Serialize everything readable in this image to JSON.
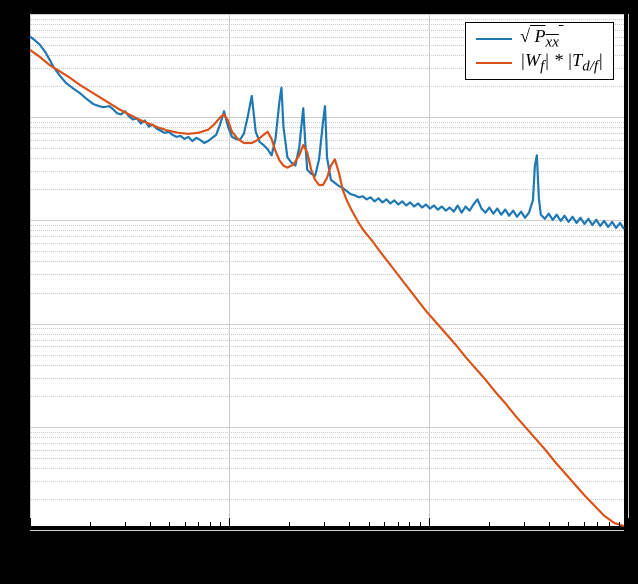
{
  "chart": {
    "type": "line",
    "background_color": "#000000",
    "plot_background": "#ffffff",
    "plot_border_color": "#000000",
    "plot_border_width": 2,
    "grid_color": "#cccccc",
    "xscale": "log",
    "yscale": "log",
    "xlim_decades": [
      0,
      3
    ],
    "ylim_decades": [
      0,
      5
    ],
    "x_minor_ticks_per_decade": [
      2,
      3,
      4,
      5,
      6,
      7,
      8,
      9
    ],
    "legend": {
      "position": "top-right",
      "border_color": "#000000",
      "background": "#ffffff",
      "items": [
        {
          "label_html": "&radic;<span style=\"text-decoration:overline\">&nbsp;P<sub>xx</sub>&nbsp;</span>"
        },
        {
          "label_html": "|W<sub>f</sub>| * |T<sub>d/f</sub>|"
        }
      ]
    },
    "series": [
      {
        "name": "sqrt_Pxx",
        "color": "#1f77b4",
        "line_width": 2.2,
        "data_logx_logy": [
          [
            0.0,
            4.78
          ],
          [
            0.02,
            4.75
          ],
          [
            0.05,
            4.7
          ],
          [
            0.08,
            4.62
          ],
          [
            0.1,
            4.55
          ],
          [
            0.12,
            4.48
          ],
          [
            0.15,
            4.4
          ],
          [
            0.18,
            4.33
          ],
          [
            0.2,
            4.3
          ],
          [
            0.22,
            4.27
          ],
          [
            0.25,
            4.23
          ],
          [
            0.28,
            4.18
          ],
          [
            0.3,
            4.15
          ],
          [
            0.32,
            4.12
          ],
          [
            0.35,
            4.1
          ],
          [
            0.37,
            4.09
          ],
          [
            0.4,
            4.1
          ],
          [
            0.42,
            4.07
          ],
          [
            0.44,
            4.03
          ],
          [
            0.46,
            4.02
          ],
          [
            0.48,
            4.05
          ],
          [
            0.5,
            4.0
          ],
          [
            0.52,
            3.97
          ],
          [
            0.54,
            3.98
          ],
          [
            0.56,
            3.93
          ],
          [
            0.58,
            3.96
          ],
          [
            0.6,
            3.9
          ],
          [
            0.62,
            3.92
          ],
          [
            0.64,
            3.88
          ],
          [
            0.66,
            3.86
          ],
          [
            0.68,
            3.84
          ],
          [
            0.7,
            3.85
          ],
          [
            0.72,
            3.82
          ],
          [
            0.74,
            3.8
          ],
          [
            0.76,
            3.81
          ],
          [
            0.78,
            3.78
          ],
          [
            0.8,
            3.8
          ],
          [
            0.82,
            3.76
          ],
          [
            0.84,
            3.79
          ],
          [
            0.86,
            3.77
          ],
          [
            0.88,
            3.74
          ],
          [
            0.9,
            3.76
          ],
          [
            0.92,
            3.79
          ],
          [
            0.94,
            3.82
          ],
          [
            0.96,
            3.92
          ],
          [
            0.98,
            4.05
          ],
          [
            1.0,
            3.9
          ],
          [
            1.02,
            3.8
          ],
          [
            1.04,
            3.78
          ],
          [
            1.06,
            3.77
          ],
          [
            1.08,
            3.83
          ],
          [
            1.1,
            4.0
          ],
          [
            1.12,
            4.2
          ],
          [
            1.14,
            3.85
          ],
          [
            1.16,
            3.75
          ],
          [
            1.18,
            3.72
          ],
          [
            1.2,
            3.68
          ],
          [
            1.22,
            3.62
          ],
          [
            1.24,
            3.78
          ],
          [
            1.26,
            4.15
          ],
          [
            1.27,
            4.28
          ],
          [
            1.28,
            3.9
          ],
          [
            1.3,
            3.6
          ],
          [
            1.32,
            3.55
          ],
          [
            1.34,
            3.52
          ],
          [
            1.36,
            3.7
          ],
          [
            1.38,
            4.08
          ],
          [
            1.39,
            3.75
          ],
          [
            1.4,
            3.48
          ],
          [
            1.42,
            3.44
          ],
          [
            1.44,
            3.42
          ],
          [
            1.46,
            3.58
          ],
          [
            1.48,
            3.95
          ],
          [
            1.49,
            4.1
          ],
          [
            1.5,
            3.6
          ],
          [
            1.52,
            3.38
          ],
          [
            1.54,
            3.35
          ],
          [
            1.56,
            3.32
          ],
          [
            1.58,
            3.3
          ],
          [
            1.6,
            3.27
          ],
          [
            1.62,
            3.24
          ],
          [
            1.64,
            3.23
          ],
          [
            1.66,
            3.21
          ],
          [
            1.68,
            3.22
          ],
          [
            1.7,
            3.19
          ],
          [
            1.72,
            3.21
          ],
          [
            1.74,
            3.17
          ],
          [
            1.76,
            3.2
          ],
          [
            1.78,
            3.16
          ],
          [
            1.8,
            3.19
          ],
          [
            1.82,
            3.15
          ],
          [
            1.84,
            3.18
          ],
          [
            1.86,
            3.14
          ],
          [
            1.88,
            3.17
          ],
          [
            1.9,
            3.13
          ],
          [
            1.92,
            3.16
          ],
          [
            1.94,
            3.12
          ],
          [
            1.96,
            3.15
          ],
          [
            1.98,
            3.11
          ],
          [
            2.0,
            3.14
          ],
          [
            2.02,
            3.1
          ],
          [
            2.04,
            3.13
          ],
          [
            2.06,
            3.09
          ],
          [
            2.08,
            3.12
          ],
          [
            2.1,
            3.08
          ],
          [
            2.12,
            3.11
          ],
          [
            2.14,
            3.07
          ],
          [
            2.16,
            3.13
          ],
          [
            2.18,
            3.06
          ],
          [
            2.2,
            3.12
          ],
          [
            2.22,
            3.08
          ],
          [
            2.24,
            3.14
          ],
          [
            2.26,
            3.19
          ],
          [
            2.28,
            3.1
          ],
          [
            2.3,
            3.06
          ],
          [
            2.32,
            3.11
          ],
          [
            2.34,
            3.05
          ],
          [
            2.36,
            3.1
          ],
          [
            2.38,
            3.04
          ],
          [
            2.4,
            3.09
          ],
          [
            2.42,
            3.03
          ],
          [
            2.44,
            3.08
          ],
          [
            2.46,
            3.02
          ],
          [
            2.48,
            3.07
          ],
          [
            2.5,
            3.01
          ],
          [
            2.52,
            3.06
          ],
          [
            2.54,
            3.18
          ],
          [
            2.55,
            3.52
          ],
          [
            2.56,
            3.62
          ],
          [
            2.57,
            3.2
          ],
          [
            2.58,
            3.04
          ],
          [
            2.6,
            3.0
          ],
          [
            2.62,
            3.05
          ],
          [
            2.64,
            2.99
          ],
          [
            2.66,
            3.04
          ],
          [
            2.68,
            2.98
          ],
          [
            2.7,
            3.03
          ],
          [
            2.72,
            2.97
          ],
          [
            2.74,
            3.02
          ],
          [
            2.76,
            2.96
          ],
          [
            2.78,
            3.01
          ],
          [
            2.8,
            2.95
          ],
          [
            2.82,
            3.0
          ],
          [
            2.84,
            2.94
          ],
          [
            2.86,
            2.99
          ],
          [
            2.88,
            2.93
          ],
          [
            2.9,
            2.98
          ],
          [
            2.92,
            2.92
          ],
          [
            2.94,
            2.97
          ],
          [
            2.96,
            2.91
          ],
          [
            2.98,
            2.96
          ],
          [
            3.0,
            2.9
          ]
        ]
      },
      {
        "name": "Wf_Tdf",
        "color": "#d95319",
        "line_width": 2.2,
        "data_logx_logy": [
          [
            0.0,
            4.65
          ],
          [
            0.05,
            4.58
          ],
          [
            0.1,
            4.5
          ],
          [
            0.15,
            4.44
          ],
          [
            0.2,
            4.38
          ],
          [
            0.25,
            4.31
          ],
          [
            0.3,
            4.25
          ],
          [
            0.35,
            4.19
          ],
          [
            0.4,
            4.13
          ],
          [
            0.45,
            4.07
          ],
          [
            0.5,
            4.02
          ],
          [
            0.55,
            3.97
          ],
          [
            0.6,
            3.93
          ],
          [
            0.65,
            3.89
          ],
          [
            0.7,
            3.86
          ],
          [
            0.75,
            3.84
          ],
          [
            0.8,
            3.83
          ],
          [
            0.85,
            3.84
          ],
          [
            0.9,
            3.87
          ],
          [
            0.93,
            3.92
          ],
          [
            0.96,
            3.99
          ],
          [
            0.98,
            4.02
          ],
          [
            1.0,
            3.96
          ],
          [
            1.02,
            3.85
          ],
          [
            1.05,
            3.78
          ],
          [
            1.08,
            3.74
          ],
          [
            1.12,
            3.74
          ],
          [
            1.15,
            3.77
          ],
          [
            1.18,
            3.82
          ],
          [
            1.2,
            3.85
          ],
          [
            1.22,
            3.78
          ],
          [
            1.24,
            3.66
          ],
          [
            1.26,
            3.57
          ],
          [
            1.28,
            3.52
          ],
          [
            1.3,
            3.5
          ],
          [
            1.33,
            3.53
          ],
          [
            1.36,
            3.62
          ],
          [
            1.38,
            3.72
          ],
          [
            1.4,
            3.65
          ],
          [
            1.42,
            3.48
          ],
          [
            1.44,
            3.38
          ],
          [
            1.46,
            3.33
          ],
          [
            1.48,
            3.33
          ],
          [
            1.5,
            3.4
          ],
          [
            1.52,
            3.52
          ],
          [
            1.54,
            3.58
          ],
          [
            1.56,
            3.45
          ],
          [
            1.58,
            3.28
          ],
          [
            1.6,
            3.18
          ],
          [
            1.62,
            3.1
          ],
          [
            1.64,
            3.03
          ],
          [
            1.66,
            2.96
          ],
          [
            1.68,
            2.9
          ],
          [
            1.7,
            2.85
          ],
          [
            1.73,
            2.78
          ],
          [
            1.76,
            2.7
          ],
          [
            1.8,
            2.6
          ],
          [
            1.84,
            2.5
          ],
          [
            1.88,
            2.4
          ],
          [
            1.92,
            2.3
          ],
          [
            1.96,
            2.2
          ],
          [
            2.0,
            2.1
          ],
          [
            2.05,
            1.99
          ],
          [
            2.1,
            1.88
          ],
          [
            2.15,
            1.77
          ],
          [
            2.2,
            1.65
          ],
          [
            2.25,
            1.54
          ],
          [
            2.3,
            1.43
          ],
          [
            2.35,
            1.31
          ],
          [
            2.4,
            1.2
          ],
          [
            2.45,
            1.08
          ],
          [
            2.5,
            0.97
          ],
          [
            2.55,
            0.86
          ],
          [
            2.6,
            0.75
          ],
          [
            2.65,
            0.63
          ],
          [
            2.7,
            0.52
          ],
          [
            2.75,
            0.41
          ],
          [
            2.8,
            0.3
          ],
          [
            2.85,
            0.2
          ],
          [
            2.9,
            0.1
          ],
          [
            2.95,
            0.03
          ],
          [
            3.0,
            0.0
          ]
        ]
      }
    ]
  }
}
